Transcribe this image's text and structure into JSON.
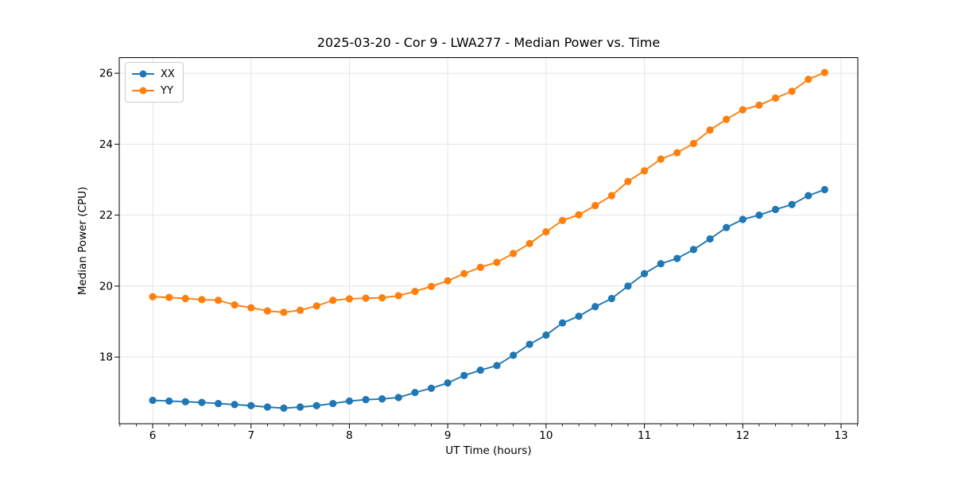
{
  "figure": {
    "title": "2025-03-20 - Cor 9 - LWA277 - Median Power vs. Time"
  },
  "chart_data": {
    "type": "line",
    "title": "2025-03-20 - Cor 9 - LWA277 - Median Power vs. Time",
    "xlabel": "UT Time (hours)",
    "ylabel": "Median Power (CPU)",
    "xlim": [
      5.66,
      13.17
    ],
    "ylim": [
      16.12,
      26.44
    ],
    "xticks": [
      6,
      7,
      8,
      9,
      10,
      11,
      12,
      13
    ],
    "xtick_labels": [
      "6",
      "7",
      "8",
      "9",
      "10",
      "11",
      "12",
      "13"
    ],
    "xtick_minor_step": 0.166667,
    "yticks": [
      18,
      20,
      22,
      24,
      26
    ],
    "ytick_labels": [
      "18",
      "20",
      "22",
      "24",
      "26"
    ],
    "grid": true,
    "legend_position": "upper-left",
    "marker": "circle",
    "x": [
      6.0,
      6.167,
      6.333,
      6.5,
      6.667,
      6.833,
      7.0,
      7.167,
      7.333,
      7.5,
      7.667,
      7.833,
      8.0,
      8.167,
      8.333,
      8.5,
      8.667,
      8.833,
      9.0,
      9.167,
      9.333,
      9.5,
      9.667,
      9.833,
      10.0,
      10.167,
      10.333,
      10.5,
      10.667,
      10.833,
      11.0,
      11.167,
      11.333,
      11.5,
      11.667,
      11.833,
      12.0,
      12.167,
      12.333,
      12.5,
      12.667,
      12.833
    ],
    "series": [
      {
        "name": "XX",
        "color": "#1f77b4",
        "values": [
          16.78,
          16.76,
          16.74,
          16.72,
          16.69,
          16.66,
          16.63,
          16.59,
          16.56,
          16.59,
          16.63,
          16.69,
          16.76,
          16.8,
          16.82,
          16.86,
          17.0,
          17.12,
          17.27,
          17.48,
          17.63,
          17.76,
          18.05,
          18.36,
          18.62,
          18.96,
          19.15,
          19.42,
          19.65,
          20.0,
          20.35,
          20.63,
          20.78,
          21.03,
          21.33,
          21.65,
          21.88,
          22.0,
          22.16,
          22.3,
          22.55,
          22.72
        ]
      },
      {
        "name": "YY",
        "color": "#ff7f0e",
        "values": [
          19.7,
          19.68,
          19.65,
          19.62,
          19.6,
          19.47,
          19.39,
          19.3,
          19.26,
          19.32,
          19.44,
          19.6,
          19.64,
          19.66,
          19.67,
          19.73,
          19.85,
          19.99,
          20.15,
          20.35,
          20.53,
          20.67,
          20.92,
          21.2,
          21.53,
          21.85,
          22.01,
          22.27,
          22.55,
          22.95,
          23.25,
          23.58,
          23.76,
          24.02,
          24.4,
          24.7,
          24.97,
          25.1,
          25.3,
          25.49,
          25.83,
          26.02
        ]
      }
    ]
  },
  "colors": {
    "grid": "#e4e4e4",
    "spine": "#000000",
    "tick": "#000000",
    "text": "#000000",
    "legend_border": "#cccccc",
    "background": "#ffffff"
  }
}
